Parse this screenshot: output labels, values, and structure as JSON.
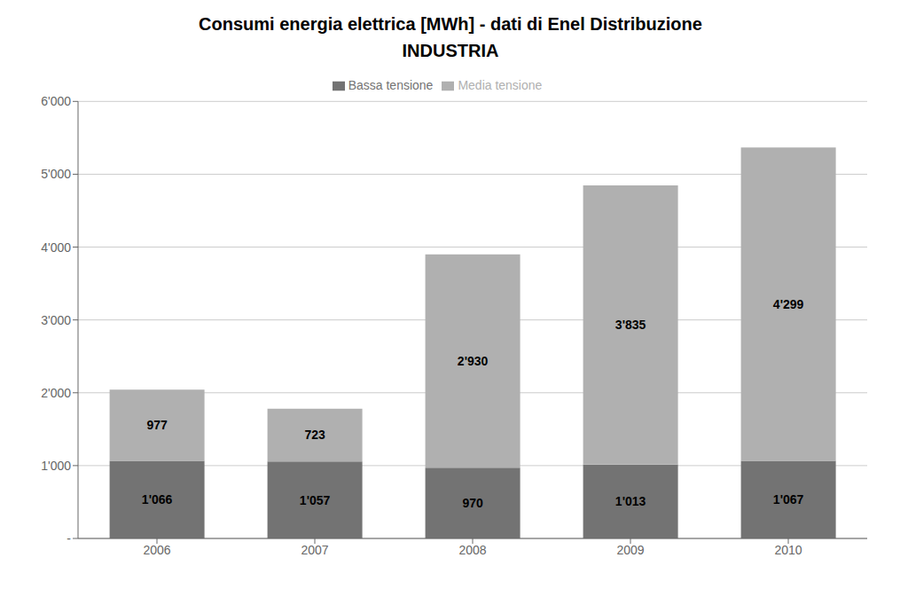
{
  "chart_data": {
    "type": "bar",
    "title": "Consumi energia elettrica [MWh] - dati di Enel Distribuzione",
    "subtitle": "INDUSTRIA",
    "categories": [
      "2006",
      "2007",
      "2008",
      "2009",
      "2010"
    ],
    "series": [
      {
        "name": "Bassa tensione",
        "color": "#737373",
        "values": [
          1066,
          1057,
          970,
          1013,
          1067
        ],
        "value_labels": [
          "1'066",
          "1'057",
          "970",
          "1'013",
          "1'067"
        ]
      },
      {
        "name": "Media tensione",
        "color": "#b0b0b0",
        "values": [
          977,
          723,
          2930,
          3835,
          4299
        ],
        "value_labels": [
          "977",
          "723",
          "2'930",
          "3'835",
          "4'299"
        ]
      }
    ],
    "stacked": true,
    "data_labels": true,
    "ylim": [
      0,
      6000
    ],
    "yticks": [
      {
        "value": 0,
        "label": "-"
      },
      {
        "value": 1000,
        "label": "1'000"
      },
      {
        "value": 2000,
        "label": "2'000"
      },
      {
        "value": 3000,
        "label": "3'000"
      },
      {
        "value": 4000,
        "label": "4'000"
      },
      {
        "value": 5000,
        "label": "5'000"
      },
      {
        "value": 6000,
        "label": "6'000"
      }
    ],
    "grid": true,
    "legend": "top"
  }
}
